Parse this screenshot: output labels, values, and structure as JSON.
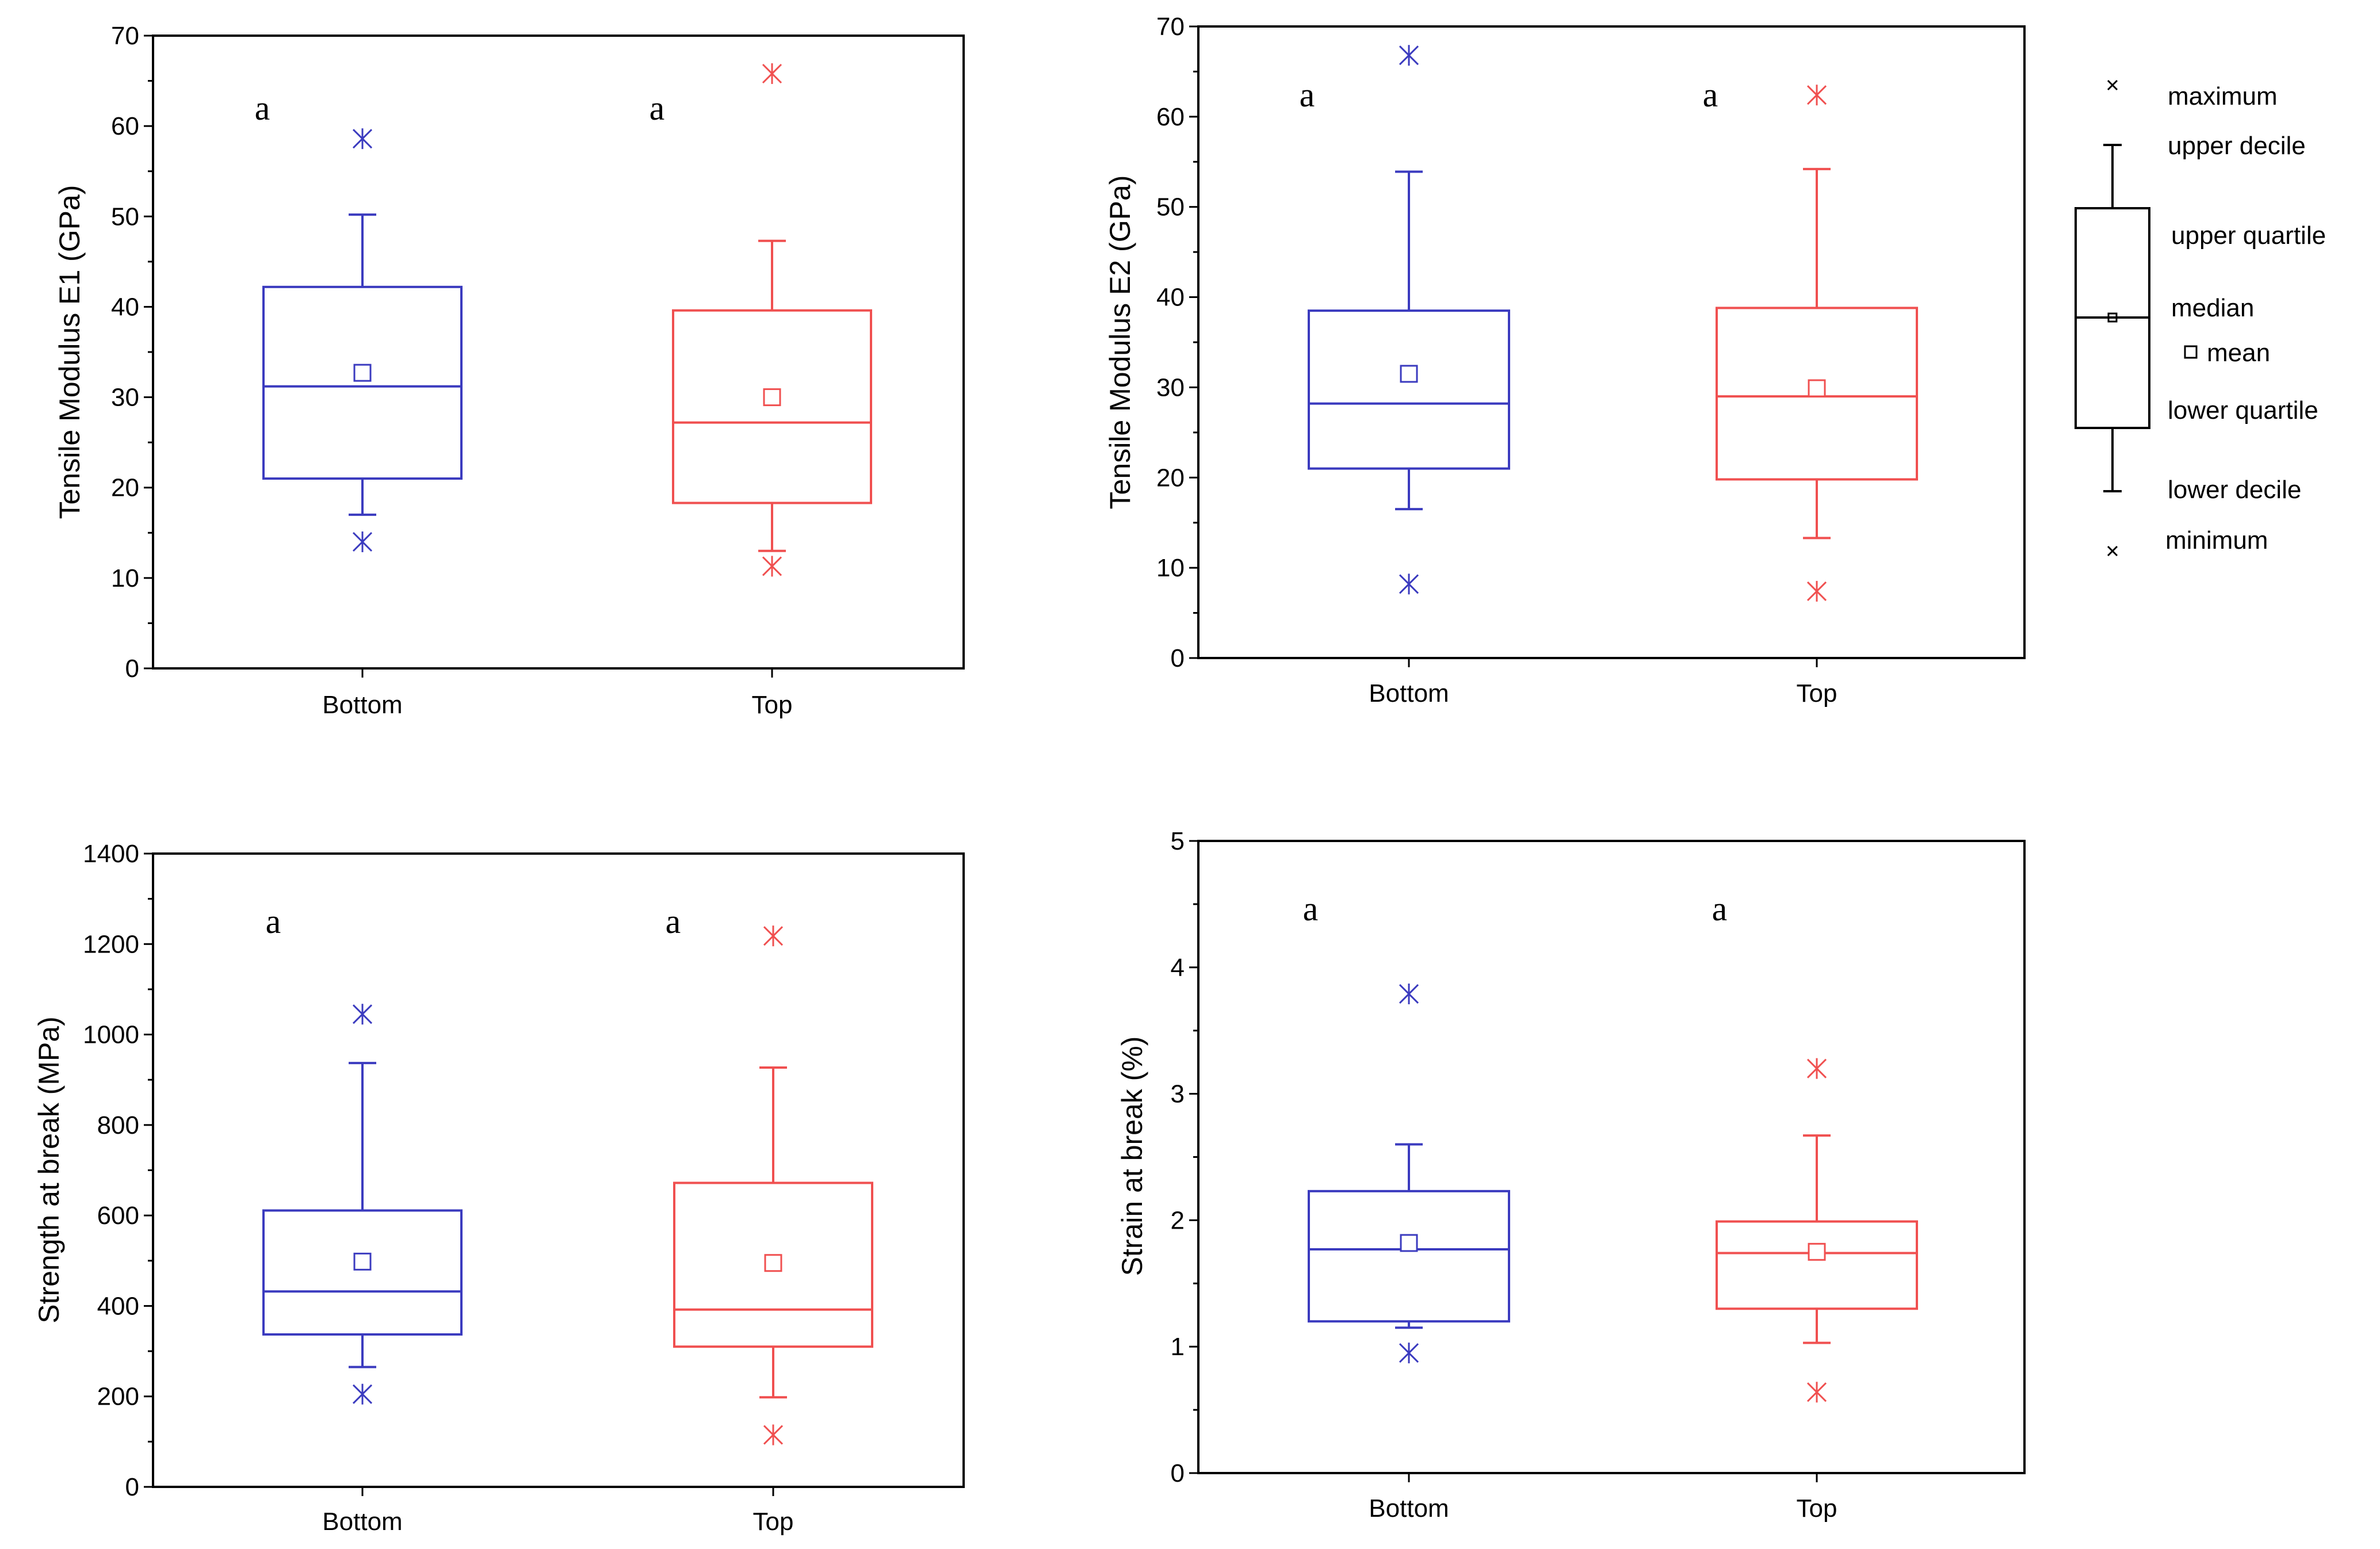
{
  "colors": {
    "bottom": "#3b3bbf",
    "top": "#f05050",
    "axis": "#000000"
  },
  "chart_data": [
    {
      "type": "box",
      "ylabel": "Tensile Modulus E1 (GPa)",
      "ylim": [
        0,
        70
      ],
      "yticks": [
        0,
        10,
        20,
        30,
        40,
        50,
        60,
        70
      ],
      "minor_ticks": true,
      "categories": [
        "Bottom",
        "Top"
      ],
      "significance_letters": [
        "a",
        "a"
      ],
      "boxes": [
        {
          "name": "Bottom",
          "color": "#3b3bbf",
          "minimum": 14,
          "lower_decile": 17,
          "lower_quartile": 21,
          "median": 31.2,
          "mean": 32.7,
          "upper_quartile": 42.2,
          "upper_decile": 50.2,
          "maximum": 58.6
        },
        {
          "name": "Top",
          "color": "#f05050",
          "minimum": 11.3,
          "lower_decile": 13,
          "lower_quartile": 18.3,
          "median": 27.2,
          "mean": 30,
          "upper_quartile": 39.6,
          "upper_decile": 47.3,
          "maximum": 65.8
        }
      ]
    },
    {
      "type": "box",
      "ylabel": "Tensile Modulus E2 (GPa)",
      "ylim": [
        0,
        70
      ],
      "yticks": [
        0,
        10,
        20,
        30,
        40,
        50,
        60,
        70
      ],
      "minor_ticks": true,
      "categories": [
        "Bottom",
        "Top"
      ],
      "significance_letters": [
        "a",
        "a"
      ],
      "boxes": [
        {
          "name": "Bottom",
          "color": "#3b3bbf",
          "minimum": 8.2,
          "lower_decile": 16.5,
          "lower_quartile": 21,
          "median": 28.2,
          "mean": 31.5,
          "upper_quartile": 38.5,
          "upper_decile": 53.9,
          "maximum": 66.8
        },
        {
          "name": "Top",
          "color": "#f05050",
          "minimum": 7.4,
          "lower_decile": 13.3,
          "lower_quartile": 19.8,
          "median": 29,
          "mean": 29.9,
          "upper_quartile": 38.8,
          "upper_decile": 54.2,
          "maximum": 62.4
        }
      ]
    },
    {
      "type": "box",
      "ylabel": "Strength at break (MPa)",
      "ylim": [
        0,
        1400
      ],
      "yticks": [
        0,
        200,
        400,
        600,
        800,
        1000,
        1200,
        1400
      ],
      "minor_ticks": true,
      "categories": [
        "Bottom",
        "Top"
      ],
      "significance_letters": [
        "a",
        "a"
      ],
      "boxes": [
        {
          "name": "Bottom",
          "color": "#3b3bbf",
          "minimum": 205,
          "lower_decile": 265,
          "lower_quartile": 337,
          "median": 432,
          "mean": 498,
          "upper_quartile": 611,
          "upper_decile": 937,
          "maximum": 1045
        },
        {
          "name": "Top",
          "color": "#f05050",
          "minimum": 115,
          "lower_decile": 198,
          "lower_quartile": 310,
          "median": 392,
          "mean": 495,
          "upper_quartile": 672,
          "upper_decile": 927,
          "maximum": 1218
        }
      ]
    },
    {
      "type": "box",
      "ylabel": "Strain at break (%)",
      "ylim": [
        0,
        5
      ],
      "yticks": [
        0,
        1,
        2,
        3,
        4,
        5
      ],
      "minor_ticks": true,
      "categories": [
        "Bottom",
        "Top"
      ],
      "significance_letters": [
        "a",
        "a"
      ],
      "boxes": [
        {
          "name": "Bottom",
          "color": "#3b3bbf",
          "minimum": 0.95,
          "lower_decile": 1.15,
          "lower_quartile": 1.2,
          "median": 1.77,
          "mean": 1.82,
          "upper_quartile": 2.23,
          "upper_decile": 2.6,
          "maximum": 3.79
        },
        {
          "name": "Top",
          "color": "#f05050",
          "minimum": 0.64,
          "lower_decile": 1.03,
          "lower_quartile": 1.3,
          "median": 1.74,
          "mean": 1.75,
          "upper_quartile": 1.99,
          "upper_decile": 2.67,
          "maximum": 3.2
        }
      ]
    }
  ],
  "legend": {
    "maximum": "maximum",
    "upper_decile": "upper decile",
    "upper_quartile": "upper quartile",
    "median": "median",
    "mean": "mean",
    "lower_quartile": "lower quartile",
    "lower_decile": "lower decile",
    "minimum": "minimum"
  }
}
